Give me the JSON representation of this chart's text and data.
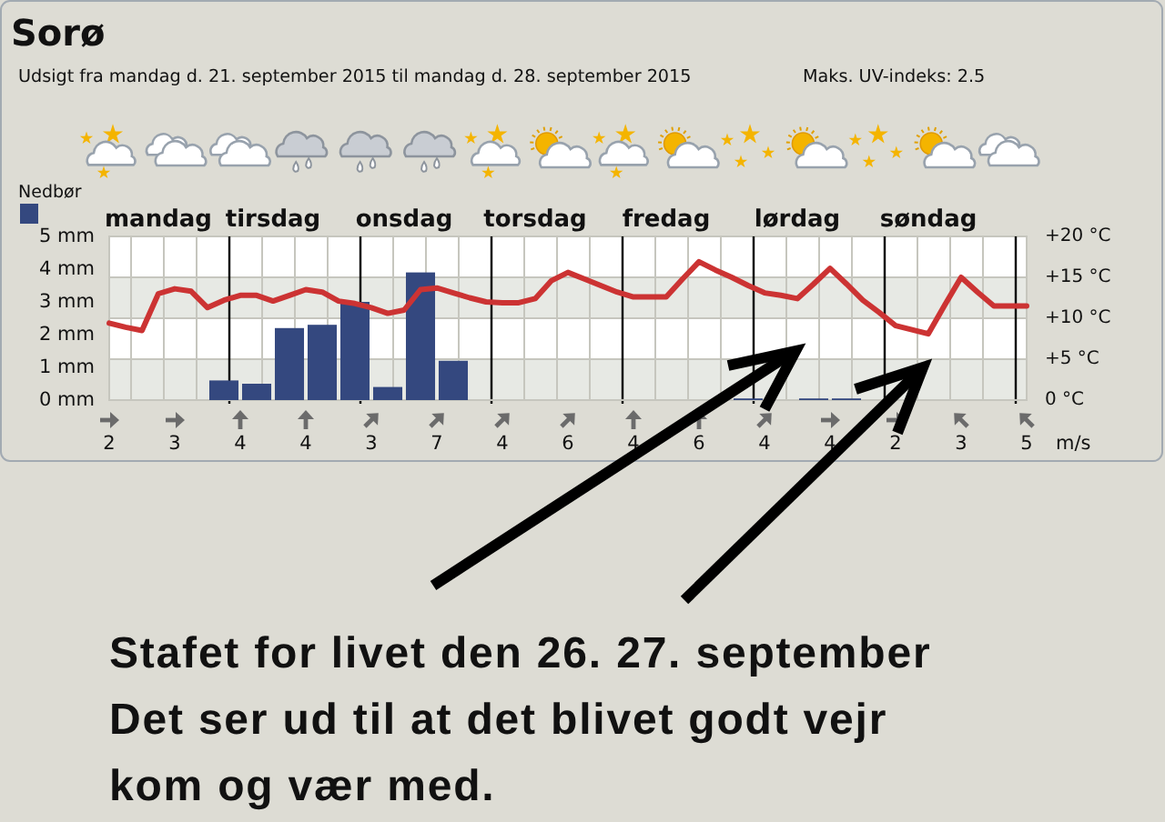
{
  "chart_data": [
    {
      "type": "bar",
      "title": "Sorø",
      "subtitle": "Udsigt fra mandag d. 21. september 2015 til mandag d. 28. september 2015",
      "annotations": [
        "Maks. UV-indeks: 2.5",
        "Stafet for livet den 26. 27. september",
        "Det ser ud til at det blivet godt vejr",
        "kom og vær med."
      ],
      "categories": [
        null,
        null,
        null,
        "mandag",
        null,
        null,
        null,
        null,
        null,
        null,
        "tirsdag",
        null,
        null,
        null,
        null,
        null,
        null,
        null,
        "onsdag",
        null,
        null,
        null,
        null,
        null,
        null,
        null,
        "torsdag",
        null,
        null,
        null,
        null,
        null,
        null,
        null,
        "fredag",
        null,
        null,
        null,
        null,
        null,
        null,
        null,
        "lørdag",
        null,
        null,
        null,
        null,
        null,
        null,
        null,
        "søndag",
        null,
        null,
        null,
        null,
        null,
        null
      ],
      "ylim": [
        0,
        5
      ],
      "yticks": [
        {
          "value": 0,
          "label": "0 mm"
        },
        {
          "value": 1,
          "label": "1 mm"
        },
        {
          "value": 2,
          "label": "2 mm"
        },
        {
          "value": 3,
          "label": "3 mm"
        },
        {
          "value": 4,
          "label": "4 mm"
        },
        {
          "value": 5,
          "label": "5 mm"
        }
      ],
      "y2lim": [
        0,
        20
      ],
      "y2ticks": [
        {
          "value": 0,
          "label": "0 °C"
        },
        {
          "value": 5,
          "label": "+5 °C"
        },
        {
          "value": 10,
          "label": "+10 °C"
        },
        {
          "value": 15,
          "label": "+15 °C"
        },
        {
          "value": 20,
          "label": "+20 °C"
        }
      ],
      "grid": true,
      "legend": "top left",
      "series": [
        {
          "name": "Nedbør",
          "color": "#34487f",
          "values": [
            null,
            null,
            null,
            null,
            null,
            null,
            null,
            0.6,
            null,
            0.5,
            null,
            2.2,
            null,
            2.3,
            null,
            3.0,
            null,
            0.4,
            null,
            3.9,
            null,
            1.2,
            null,
            null,
            null,
            null,
            null,
            null,
            null,
            null,
            null,
            null,
            null,
            null,
            null,
            null,
            null,
            null,
            null,
            0.05,
            null,
            null,
            null,
            0.05,
            null,
            0.05,
            null,
            null,
            null,
            null,
            null,
            null,
            null,
            null,
            null,
            null,
            null
          ]
        },
        {
          "type": "line",
          "axis": "y2",
          "color": "#cc3333",
          "values": [
            9.4,
            8.9,
            8.5,
            13.0,
            13.6,
            13.3,
            11.3,
            12.2,
            12.8,
            12.8,
            12.1,
            12.8,
            13.5,
            13.2,
            12.1,
            11.8,
            11.3,
            10.6,
            11.0,
            13.5,
            13.7,
            13.1,
            12.5,
            12.0,
            11.9,
            11.9,
            12.4,
            14.6,
            15.6,
            14.8,
            14.0,
            13.2,
            12.6,
            12.6,
            12.6,
            14.8,
            16.9,
            15.9,
            15.0,
            14.0,
            13.1,
            12.8,
            12.4,
            14.2,
            16.1,
            14.2,
            12.2,
            10.7,
            9.1,
            8.6,
            8.1,
            11.6,
            15.0,
            13.2,
            11.5,
            11.5,
            11.5
          ]
        }
      ]
    },
    {
      "type": "other",
      "categories": [
        null,
        null,
        null,
        null,
        null,
        null,
        null,
        null,
        null,
        null,
        null,
        null,
        null,
        null,
        null
      ],
      "values": [
        2,
        3,
        4,
        4,
        3,
        7,
        4,
        6,
        4,
        6,
        4,
        4,
        2,
        3,
        5
      ],
      "data_labels": true,
      "annotations": [
        "m/s"
      ]
    }
  ]
}
